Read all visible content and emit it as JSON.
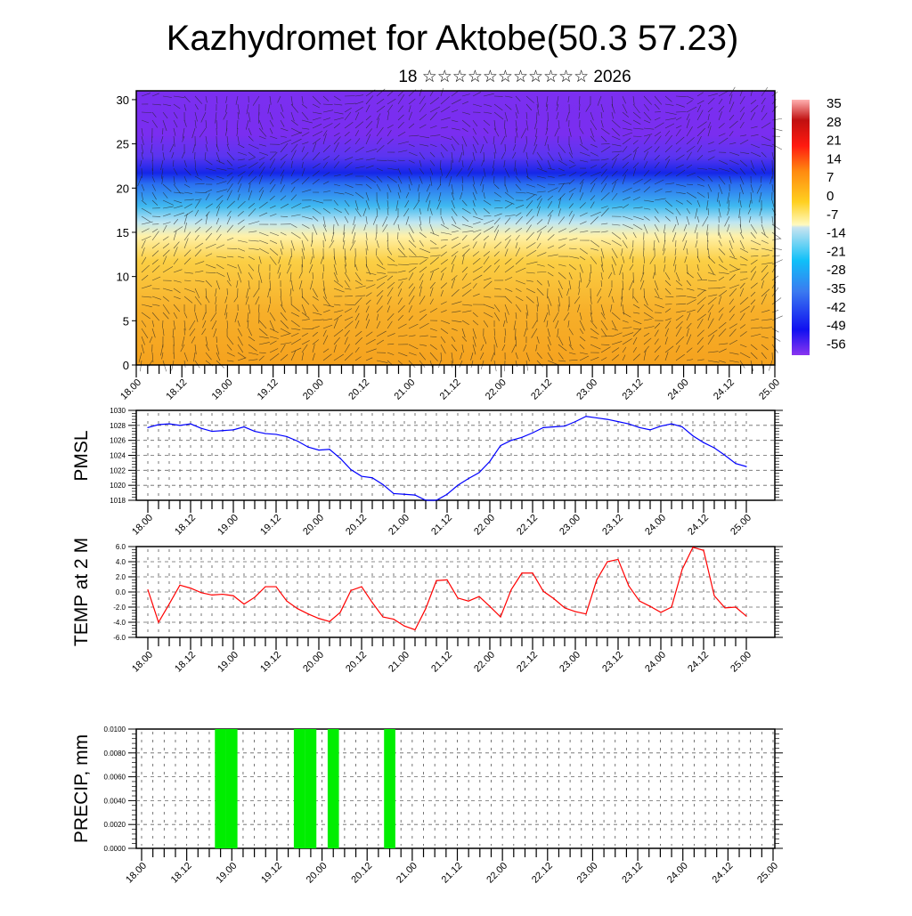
{
  "title": "Kazhydromet for Aktobe(50.3 57.23)",
  "subtitle": "18 ☆☆☆☆☆☆☆☆☆☆☆ 2026",
  "time_labels": [
    "18.00",
    "18.12",
    "19.00",
    "19.12",
    "20.00",
    "20.12",
    "21.00",
    "21.12",
    "22.00",
    "22.12",
    "23.00",
    "23.12",
    "24.00",
    "24.12",
    "25.00"
  ],
  "chart_data": [
    {
      "type": "heatmap",
      "name": "cross-section",
      "ylim": [
        0,
        31
      ],
      "yticks": [
        "0",
        "5",
        "10",
        "15",
        "20",
        "25",
        "30"
      ],
      "colorbar_labels": [
        "35",
        "28",
        "21",
        "14",
        "7",
        "0",
        "-7",
        "-14",
        "-21",
        "-28",
        "-35",
        "-42",
        "-49",
        "-56"
      ],
      "colorbar_range": [
        -63,
        35
      ],
      "colors": {
        "warm": "#f6a623",
        "pale": "#fff6b0",
        "light_blue": "#7fd0f0",
        "blue": "#1e3cf0",
        "purple": "#7a2ef0"
      }
    },
    {
      "type": "line",
      "name": "PMSL",
      "ylabel": "PMSL",
      "ylim": [
        1018,
        1030
      ],
      "yticks": [
        "1018",
        "1020",
        "1022",
        "1024",
        "1026",
        "1028",
        "1030"
      ],
      "color": "#0000ff",
      "values": [
        1027.7,
        1028.1,
        1028.2,
        1028.0,
        1028.2,
        1027.6,
        1027.2,
        1027.3,
        1027.4,
        1027.8,
        1027.2,
        1026.9,
        1026.8,
        1026.5,
        1025.9,
        1025.1,
        1024.7,
        1024.8,
        1023.6,
        1022.1,
        1021.2,
        1021.0,
        1020.1,
        1018.9,
        1018.8,
        1018.7,
        1018.0,
        1018.0,
        1018.8,
        1020.0,
        1020.9,
        1021.7,
        1023.2,
        1025.3,
        1026.0,
        1026.4,
        1027.0,
        1027.7,
        1027.8,
        1027.9,
        1028.5,
        1029.2,
        1029.0,
        1028.8,
        1028.5,
        1028.2,
        1027.7,
        1027.4,
        1027.9,
        1028.2,
        1027.8,
        1026.6,
        1025.7,
        1025.0,
        1024.0,
        1022.9,
        1022.5
      ]
    },
    {
      "type": "line",
      "name": "TEMP",
      "ylabel": "TEMP at 2 M",
      "ylim": [
        -6,
        6
      ],
      "yticks": [
        "-6.0",
        "-4.0",
        "-2.0",
        "0.0",
        "2.0",
        "4.0",
        "6.0"
      ],
      "color": "#ff0000",
      "values": [
        0.3,
        -4.0,
        -1.6,
        0.9,
        0.5,
        -0.1,
        -0.4,
        -0.3,
        -0.5,
        -1.6,
        -0.7,
        0.7,
        0.7,
        -1.2,
        -2.2,
        -2.9,
        -3.5,
        -3.9,
        -2.7,
        0.2,
        0.7,
        -1.4,
        -3.3,
        -3.6,
        -4.5,
        -5.0,
        -2.2,
        1.5,
        1.6,
        -0.8,
        -1.2,
        -0.6,
        -1.9,
        -3.3,
        0.3,
        2.5,
        2.5,
        0.1,
        -0.9,
        -2.1,
        -2.6,
        -2.9,
        1.6,
        4.0,
        4.3,
        0.8,
        -1.2,
        -1.9,
        -2.7,
        -2.0,
        3.0,
        5.9,
        5.5,
        -0.5,
        -2.1,
        -2.0,
        -3.2
      ]
    },
    {
      "type": "bar",
      "name": "PRECIP",
      "ylabel": "PRECIP, mm",
      "ylim": [
        0,
        0.01
      ],
      "yticks": [
        "0.0000",
        "0.0020",
        "0.0040",
        "0.0060",
        "0.0080",
        "0.0100"
      ],
      "color": "#00ee00",
      "bars": [
        {
          "step": 7,
          "value": 0.01
        },
        {
          "step": 8,
          "value": 0.01
        },
        {
          "step": 14,
          "value": 0.01
        },
        {
          "step": 15,
          "value": 0.01
        },
        {
          "step": 17,
          "value": 0.01
        },
        {
          "step": 22,
          "value": 0.01
        }
      ]
    }
  ]
}
